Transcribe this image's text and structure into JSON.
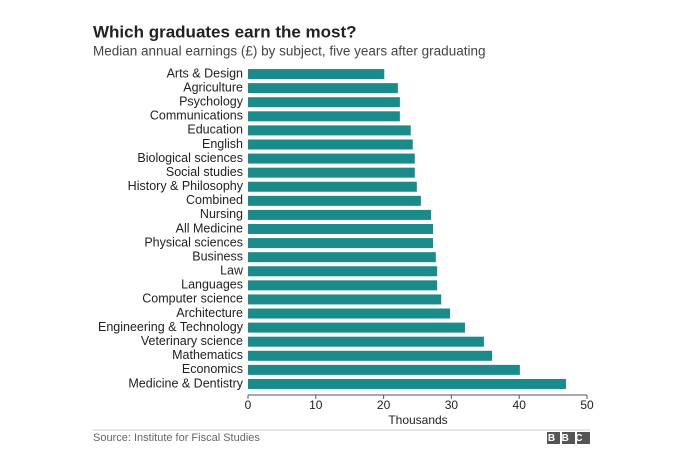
{
  "chart_data": {
    "type": "barh",
    "title": "Which graduates earn the most?",
    "subtitle": "Median annual earnings (£) by subject, five years after graduating",
    "x_label": "Thousands",
    "source": "Source: Institute for Fiscal Studies",
    "logo": "BBC",
    "categories": [
      "Arts & Design",
      "Agriculture",
      "Psychology",
      "Communications",
      "Education",
      "English",
      "Biological sciences",
      "Social studies",
      "History & Philosophy",
      "Combined",
      "Nursing",
      "All Medicine",
      "Physical sciences",
      "Business",
      "Law",
      "Languages",
      "Computer science",
      "Architecture",
      "Engineering & Technology",
      "Veterinary science",
      "Mathematics",
      "Economics",
      "Medicine & Dentistry"
    ],
    "values": [
      20.1,
      22.1,
      22.4,
      22.4,
      24.0,
      24.3,
      24.6,
      24.6,
      24.9,
      25.5,
      27.0,
      27.3,
      27.3,
      27.7,
      27.9,
      27.9,
      28.5,
      29.8,
      32.0,
      34.8,
      36.0,
      40.1,
      46.9
    ],
    "color": "#1b8a8a",
    "xlim": [
      0,
      50
    ],
    "xticks": [
      0,
      10,
      20,
      30,
      40,
      50
    ]
  }
}
